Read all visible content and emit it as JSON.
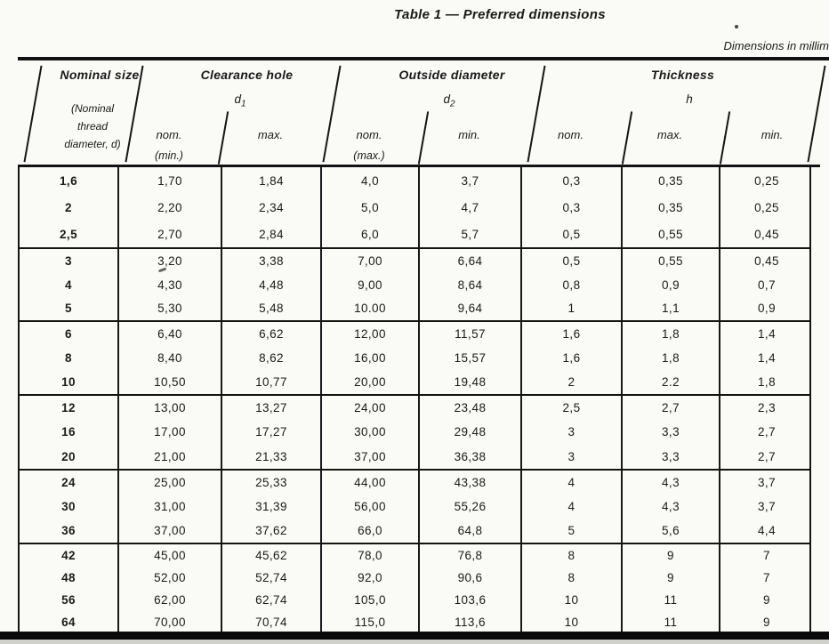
{
  "page": {
    "title": "Table 1 — Preferred dimensions",
    "dimensions_note": "Dimensions in millim"
  },
  "table": {
    "header": {
      "nominal": {
        "title": "Nominal size",
        "sub1": "(Nominal",
        "sub2": "thread",
        "sub3": "diameter, d)"
      },
      "clearance": {
        "title": "Clearance hole",
        "symbol": "d",
        "symbol_sub": "1",
        "nom": "nom.",
        "nom_sub": "(min.)",
        "max": "max."
      },
      "outside": {
        "title": "Outside diameter",
        "symbol": "d",
        "symbol_sub": "2",
        "nom": "nom.",
        "nom_sub": "(max.)",
        "min": "min."
      },
      "thickness": {
        "title": "Thickness",
        "symbol": "h",
        "nom": "nom.",
        "max": "max.",
        "min": "min."
      }
    },
    "column_keys": [
      "nominal_size",
      "clearance_nom",
      "clearance_max",
      "outside_nom",
      "outside_min",
      "thickness_nom",
      "thickness_max",
      "thickness_min"
    ],
    "groups": [
      [
        [
          "1,6",
          "1,70",
          "1,84",
          "4,0",
          "3,7",
          "0,3",
          "0,35",
          "0,25"
        ],
        [
          "2",
          "2,20",
          "2,34",
          "5,0",
          "4,7",
          "0,3",
          "0,35",
          "0,25"
        ],
        [
          "2,5",
          "2,70",
          "2,84",
          "6,0",
          "5,7",
          "0,5",
          "0,55",
          "0,45"
        ]
      ],
      [
        [
          "3",
          "3,20",
          "3,38",
          "7,00",
          "6,64",
          "0,5",
          "0,55",
          "0,45"
        ],
        [
          "4",
          "4,30",
          "4,48",
          "9,00",
          "8,64",
          "0,8",
          "0,9",
          "0,7"
        ],
        [
          "5",
          "5,30",
          "5,48",
          "10.00",
          "9,64",
          "1",
          "1,1",
          "0,9"
        ]
      ],
      [
        [
          "6",
          "6,40",
          "6,62",
          "12,00",
          "11,57",
          "1,6",
          "1,8",
          "1,4"
        ],
        [
          "8",
          "8,40",
          "8,62",
          "16,00",
          "15,57",
          "1,6",
          "1,8",
          "1,4"
        ],
        [
          "10",
          "10,50",
          "10,77",
          "20,00",
          "19,48",
          "2",
          "2.2",
          "1,8"
        ]
      ],
      [
        [
          "12",
          "13,00",
          "13,27",
          "24,00",
          "23,48",
          "2,5",
          "2,7",
          "2,3"
        ],
        [
          "16",
          "17,00",
          "17,27",
          "30,00",
          "29,48",
          "3",
          "3,3",
          "2,7"
        ],
        [
          "20",
          "21,00",
          "21,33",
          "37,00",
          "36,38",
          "3",
          "3,3",
          "2,7"
        ]
      ],
      [
        [
          "24",
          "25,00",
          "25,33",
          "44,00",
          "43,38",
          "4",
          "4,3",
          "3,7"
        ],
        [
          "30",
          "31,00",
          "31,39",
          "56,00",
          "55,26",
          "4",
          "4,3",
          "3,7"
        ],
        [
          "36",
          "37,00",
          "37,62",
          "66,0",
          "64,8",
          "5",
          "5,6",
          "4,4"
        ]
      ],
      [
        [
          "42",
          "45,00",
          "45,62",
          "78,0",
          "76,8",
          "8",
          "9",
          "7"
        ],
        [
          "48",
          "52,00",
          "52,74",
          "92,0",
          "90,6",
          "8",
          "9",
          "7"
        ],
        [
          "56",
          "62,00",
          "62,74",
          "105,0",
          "103,6",
          "10",
          "11",
          "9"
        ],
        [
          "64",
          "70,00",
          "70,74",
          "115,0",
          "113,6",
          "10",
          "11",
          "9"
        ]
      ]
    ]
  },
  "colors": {
    "ink": "#1b1b1b",
    "paper": "#fafaf6",
    "rule": "#171717"
  }
}
